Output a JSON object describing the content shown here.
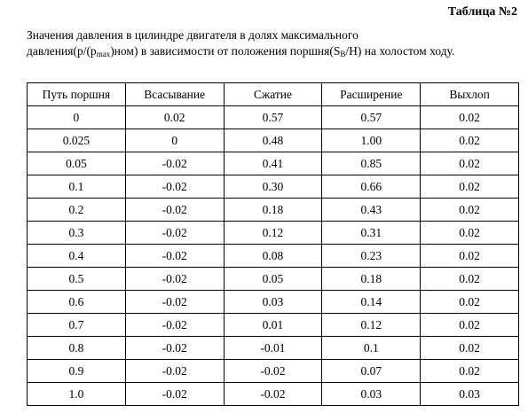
{
  "header": {
    "label": "Таблица №2"
  },
  "caption": [
    "Значения давления в цилиндре двигателя в долях максимального",
    "давления(p/(p",
    "max",
    ")ном) в зависимости от положения поршня(S",
    "B",
    "/H) на холостом ходу."
  ],
  "table": {
    "columns": [
      "Путь поршня",
      "Всасывание",
      "Сжатие",
      "Расширение",
      "Выхлоп"
    ],
    "rows": [
      [
        "0",
        "0.02",
        "0.57",
        "0.57",
        "0.02"
      ],
      [
        "0.025",
        "0",
        "0.48",
        "1.00",
        "0.02"
      ],
      [
        "0.05",
        "-0.02",
        "0.41",
        "0.85",
        "0.02"
      ],
      [
        "0.1",
        "-0.02",
        "0.30",
        "0.66",
        "0.02"
      ],
      [
        "0.2",
        "-0.02",
        "0.18",
        "0.43",
        "0.02"
      ],
      [
        "0.3",
        "-0.02",
        "0.12",
        "0.31",
        "0.02"
      ],
      [
        "0.4",
        "-0.02",
        "0.08",
        "0.23",
        "0.02"
      ],
      [
        "0.5",
        "-0.02",
        "0.05",
        "0.18",
        "0.02"
      ],
      [
        "0.6",
        "-0.02",
        "0.03",
        "0.14",
        "0.02"
      ],
      [
        "0.7",
        "-0.02",
        "0.01",
        "0.12",
        "0.02"
      ],
      [
        "0.8",
        "-0.02",
        "-0.01",
        "0.1",
        "0.02"
      ],
      [
        "0.9",
        "-0.02",
        "-0.02",
        "0.07",
        "0.02"
      ],
      [
        "1.0",
        "-0.02",
        "-0.02",
        "0.03",
        "0.03"
      ]
    ]
  }
}
